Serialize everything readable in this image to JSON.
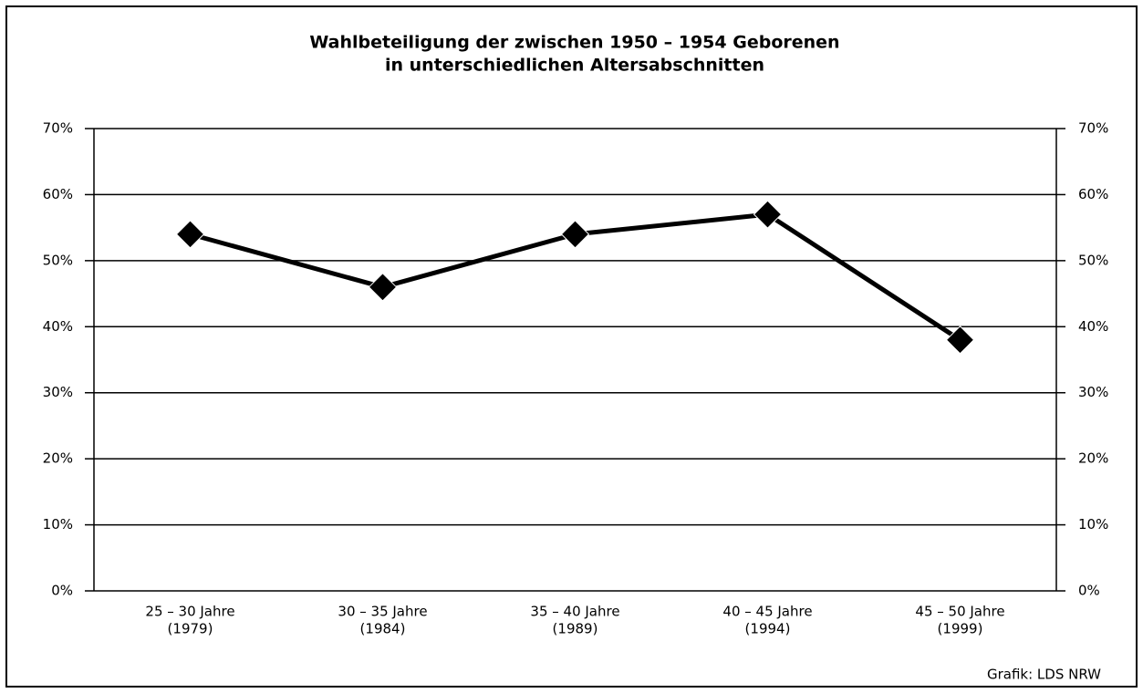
{
  "chart_data": {
    "type": "line",
    "title": "Wahlbeteiligung der zwischen 1950 – 1954 Geborenen",
    "subtitle": "in unterschiedlichen Altersabschnitten",
    "categories": [
      [
        "25 – 30 Jahre",
        "(1979)"
      ],
      [
        "30 – 35 Jahre",
        "(1984)"
      ],
      [
        "35 – 40 Jahre",
        "(1989)"
      ],
      [
        "40 – 45 Jahre",
        "(1994)"
      ],
      [
        "45 – 50 Jahre",
        "(1999)"
      ]
    ],
    "values": [
      54,
      46,
      54,
      57,
      38
    ],
    "color": "#000000",
    "ylim": [
      0,
      70
    ],
    "yticks": [
      {
        "value": 0,
        "label": "0%"
      },
      {
        "value": 10,
        "label": "10%"
      },
      {
        "value": 20,
        "label": "20%"
      },
      {
        "value": 30,
        "label": "30%"
      },
      {
        "value": 40,
        "label": "40%"
      },
      {
        "value": 50,
        "label": "50%"
      },
      {
        "value": 60,
        "label": "60%"
      },
      {
        "value": 70,
        "label": "70%"
      }
    ],
    "y2lim": [
      0,
      70
    ],
    "y2ticks": [
      {
        "value": 0,
        "label": "0%"
      },
      {
        "value": 10,
        "label": "10%"
      },
      {
        "value": 20,
        "label": "20%"
      },
      {
        "value": 30,
        "label": "30%"
      },
      {
        "value": 40,
        "label": "40%"
      },
      {
        "value": 50,
        "label": "50%"
      },
      {
        "value": 60,
        "label": "60%"
      },
      {
        "value": 70,
        "label": "70%"
      }
    ],
    "grid": true,
    "source": "Grafik: LDS NRW"
  }
}
